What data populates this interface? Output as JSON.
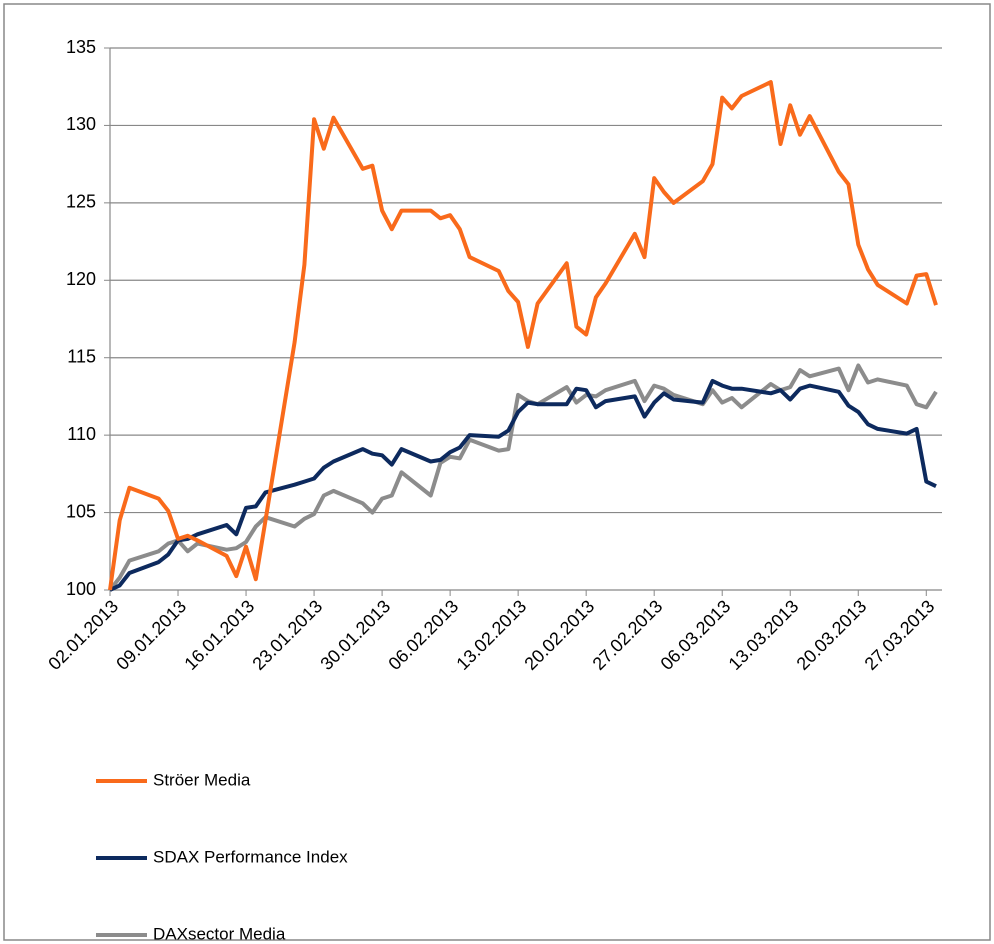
{
  "chart_data": {
    "type": "line",
    "x": [
      "02.01.2013",
      "03.01.2013",
      "04.01.2013",
      "07.01.2013",
      "08.01.2013",
      "09.01.2013",
      "10.01.2013",
      "11.01.2013",
      "14.01.2013",
      "15.01.2013",
      "16.01.2013",
      "17.01.2013",
      "18.01.2013",
      "21.01.2013",
      "22.01.2013",
      "23.01.2013",
      "24.01.2013",
      "25.01.2013",
      "28.01.2013",
      "29.01.2013",
      "30.01.2013",
      "31.01.2013",
      "01.02.2013",
      "04.02.2013",
      "05.02.2013",
      "06.02.2013",
      "07.02.2013",
      "08.02.2013",
      "11.02.2013",
      "12.02.2013",
      "13.02.2013",
      "14.02.2013",
      "15.02.2013",
      "18.02.2013",
      "19.02.2013",
      "20.02.2013",
      "21.02.2013",
      "22.02.2013",
      "25.02.2013",
      "26.02.2013",
      "27.02.2013",
      "28.02.2013",
      "01.03.2013",
      "04.03.2013",
      "05.03.2013",
      "06.03.2013",
      "07.03.2013",
      "08.03.2013",
      "11.03.2013",
      "12.03.2013",
      "13.03.2013",
      "14.03.2013",
      "15.03.2013",
      "18.03.2013",
      "19.03.2013",
      "20.03.2013",
      "21.03.2013",
      "22.03.2013",
      "25.03.2013",
      "26.03.2013",
      "27.03.2013",
      "28.03.2013"
    ],
    "series": [
      {
        "name": "Ströer Media",
        "color": "#f96a1b",
        "values": [
          100,
          104.5,
          106.6,
          105.9,
          105.1,
          103.3,
          103.5,
          103.2,
          102.2,
          100.9,
          102.8,
          100.7,
          104.5,
          116,
          121,
          130.4,
          128.5,
          130.5,
          127.2,
          127.4,
          124.5,
          123.3,
          124.5,
          124.5,
          124.0,
          124.2,
          123.3,
          121.5,
          120.6,
          119.3,
          118.6,
          115.7,
          118.5,
          121.1,
          117.0,
          116.5,
          118.9,
          119.8,
          123.0,
          121.5,
          126.6,
          125.7,
          125.0,
          126.4,
          127.5,
          131.8,
          131.1,
          131.9,
          132.8,
          128.8,
          131.3,
          129.4,
          130.6,
          127.0,
          126.2,
          122.3,
          120.7,
          119.7,
          118.5,
          120.3,
          120.4,
          118.4
        ]
      },
      {
        "name": "SDAX Performance Index",
        "color": "#0d2a5e",
        "values": [
          100,
          100.3,
          101.1,
          101.8,
          102.3,
          103.2,
          103.3,
          103.6,
          104.2,
          103.6,
          105.3,
          105.4,
          106.3,
          106.8,
          107.0,
          107.2,
          107.9,
          108.3,
          109.1,
          108.8,
          108.7,
          108.1,
          109.1,
          108.3,
          108.4,
          108.9,
          109.2,
          110.0,
          109.9,
          110.3,
          111.5,
          112.1,
          112.0,
          112.0,
          113.0,
          112.9,
          111.8,
          112.2,
          112.5,
          111.2,
          112.1,
          112.7,
          112.3,
          112.1,
          113.5,
          113.2,
          113.0,
          113.0,
          112.7,
          112.9,
          112.3,
          113.0,
          113.2,
          112.8,
          111.9,
          111.5,
          110.7,
          110.4,
          110.1,
          110.4,
          107.0,
          106.7
        ]
      },
      {
        "name": "DAXsector Media",
        "color": "#8c8c8c",
        "values": [
          100,
          100.8,
          101.9,
          102.5,
          103.0,
          103.2,
          102.5,
          103.0,
          102.6,
          102.7,
          103.1,
          104.1,
          104.7,
          104.1,
          104.6,
          104.9,
          106.1,
          106.4,
          105.6,
          105.0,
          105.9,
          106.1,
          107.6,
          106.1,
          108.2,
          108.6,
          108.5,
          109.7,
          109.0,
          109.1,
          112.6,
          112.2,
          112.0,
          113.1,
          112.1,
          112.6,
          112.5,
          112.9,
          113.5,
          112.2,
          113.2,
          113.0,
          112.6,
          112.0,
          112.9,
          112.1,
          112.4,
          111.8,
          113.3,
          112.9,
          113.1,
          114.2,
          113.8,
          114.3,
          112.9,
          114.5,
          113.4,
          113.6,
          113.2,
          112.0,
          111.8,
          112.8
        ]
      }
    ],
    "xlim": [
      "02.01.2013",
      "28.03.2013"
    ],
    "xticks": [
      "02.01.2013",
      "09.01.2013",
      "16.01.2013",
      "23.01.2013",
      "30.01.2013",
      "06.02.2013",
      "13.02.2013",
      "20.02.2013",
      "27.02.2013",
      "06.03.2013",
      "13.03.2013",
      "20.03.2013",
      "27.03.2013"
    ],
    "ylim": [
      100,
      135
    ],
    "yticks": [
      100,
      105,
      110,
      115,
      120,
      125,
      130,
      135
    ],
    "grid": true
  }
}
